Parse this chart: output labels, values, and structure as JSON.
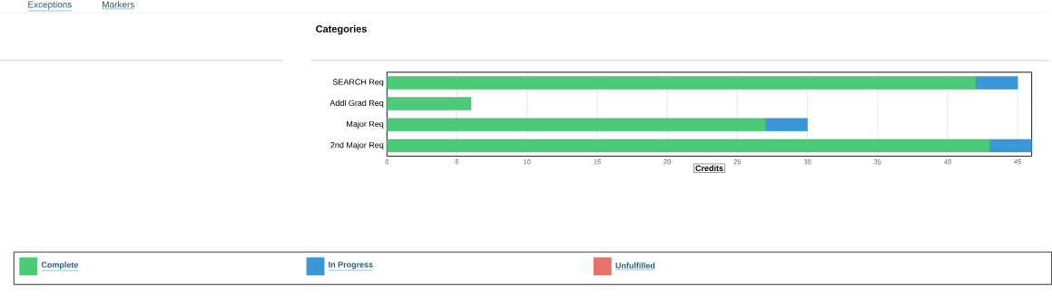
{
  "chart_data": {
    "type": "bar",
    "orientation": "horizontal",
    "stacked": true,
    "title": "Categories",
    "xlabel": "Credits",
    "categories": [
      "SEARCH Req",
      "Addl Grad Req",
      "Major Req",
      "2nd Major Req"
    ],
    "series": [
      {
        "name": "Complete",
        "color": "#4ec97a",
        "values": [
          42,
          6,
          27,
          43
        ]
      },
      {
        "name": "In Progress",
        "color": "#3d97d6",
        "values": [
          3,
          null,
          3,
          3
        ]
      },
      {
        "name": "Unfulfilled",
        "color": "#e8736c",
        "values": [
          null,
          null,
          null,
          null
        ]
      }
    ],
    "xlim": [
      0,
      46
    ],
    "xticks": [
      0,
      5,
      10,
      15,
      20,
      25,
      30,
      35,
      40,
      45
    ],
    "grid": "x",
    "legend": "bottom",
    "annotations": [
      "Exceptions",
      "Markers"
    ]
  }
}
